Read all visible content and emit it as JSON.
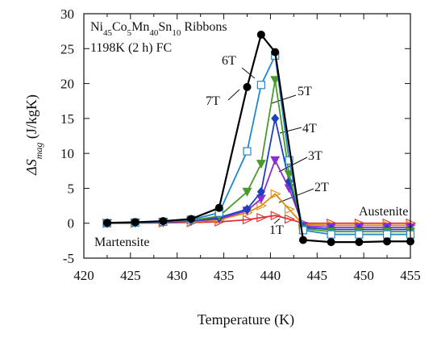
{
  "chart_data": {
    "type": "line",
    "title_line1": {
      "base": "Ni",
      "s1": "45",
      "t1": "Co",
      "s2": "5",
      "t2": "Mn",
      "s3": "40",
      "t3": "Sn",
      "s4": "10",
      "t4": " Ribbons"
    },
    "title_line2": "1198K (2 h) FC",
    "xlabel": "Temperature (K)",
    "ylabel": {
      "delta": "ΔS",
      "sub": "mag",
      "unit": " (J/kgK)"
    },
    "xlim": [
      420,
      455
    ],
    "ylim": [
      -5,
      30
    ],
    "xticks": [
      "420",
      "425",
      "430",
      "435",
      "440",
      "445",
      "450",
      "455"
    ],
    "yticks": [
      "-5",
      "0",
      "5",
      "10",
      "15",
      "20",
      "25",
      "30"
    ],
    "phase_labels": {
      "martensite": "Martensite",
      "austenite": "Austenite"
    },
    "series": [
      {
        "name": "1T",
        "color": "#e03030",
        "marker": "triangle-right-open",
        "x": [
          422.5,
          425.5,
          428.5,
          431.5,
          434.5,
          437.5,
          439.0,
          440.5,
          442.0,
          443.5,
          446.5,
          449.5,
          452.5,
          455.0
        ],
        "y": [
          0.0,
          0.0,
          0.05,
          0.1,
          0.2,
          0.5,
          0.8,
          1.1,
          0.6,
          0.0,
          0.0,
          0.0,
          0.0,
          0.0
        ]
      },
      {
        "name": "2T",
        "color": "#e08a10",
        "marker": "triangle-right-open",
        "x": [
          422.5,
          425.5,
          428.5,
          431.5,
          434.5,
          437.5,
          439.0,
          440.5,
          442.0,
          443.5,
          446.5,
          449.5,
          452.5,
          455.0
        ],
        "y": [
          0.0,
          0.0,
          0.1,
          0.2,
          0.5,
          1.5,
          2.5,
          4.2,
          2.0,
          -0.2,
          -0.3,
          -0.3,
          -0.3,
          -0.3
        ]
      },
      {
        "name": "3T",
        "color": "#8a30d0",
        "marker": "triangle-down",
        "x": [
          422.5,
          425.5,
          428.5,
          431.5,
          434.5,
          437.5,
          439.0,
          440.5,
          442.0,
          443.5,
          446.5,
          449.5,
          452.5,
          455.0
        ],
        "y": [
          0.0,
          0.05,
          0.1,
          0.3,
          0.6,
          1.8,
          3.5,
          9.0,
          5.0,
          -0.4,
          -0.6,
          -0.6,
          -0.6,
          -0.6
        ]
      },
      {
        "name": "4T",
        "color": "#1a3fc0",
        "marker": "diamond",
        "x": [
          422.5,
          425.5,
          428.5,
          431.5,
          434.5,
          437.5,
          439.0,
          440.5,
          442.0,
          443.5,
          446.5,
          449.5,
          452.5,
          455.0
        ],
        "y": [
          0.0,
          0.05,
          0.15,
          0.35,
          0.8,
          2.0,
          4.5,
          15.0,
          6.0,
          -0.6,
          -0.9,
          -0.9,
          -0.9,
          -0.9
        ]
      },
      {
        "name": "5T",
        "color": "#4a9a2a",
        "marker": "triangle-down",
        "x": [
          422.5,
          425.5,
          428.5,
          431.5,
          434.5,
          437.5,
          439.0,
          440.5,
          442.0,
          443.5,
          446.5,
          449.5,
          452.5,
          455.0
        ],
        "y": [
          0.0,
          0.05,
          0.2,
          0.4,
          1.0,
          4.5,
          8.5,
          20.5,
          7.0,
          -0.8,
          -1.2,
          -1.2,
          -1.2,
          -1.2
        ]
      },
      {
        "name": "6T",
        "color": "#2288cc",
        "marker": "square-open",
        "x": [
          422.5,
          425.5,
          428.5,
          431.5,
          434.5,
          437.5,
          439.0,
          440.5,
          442.0,
          443.5,
          446.5,
          449.5,
          452.5,
          455.0
        ],
        "y": [
          0.0,
          0.1,
          0.2,
          0.5,
          1.5,
          10.3,
          19.8,
          24.0,
          9.0,
          -1.0,
          -1.6,
          -1.6,
          -1.6,
          -1.6
        ]
      },
      {
        "name": "7T",
        "color": "#000000",
        "marker": "circle",
        "x": [
          422.5,
          425.5,
          428.5,
          431.5,
          434.5,
          437.5,
          439.0,
          440.5,
          443.5,
          446.5,
          449.5,
          452.5,
          455.0
        ],
        "y": [
          0.05,
          0.15,
          0.3,
          0.6,
          2.2,
          19.5,
          27.0,
          24.5,
          -2.4,
          -2.7,
          -2.7,
          -2.6,
          -2.6
        ]
      }
    ]
  }
}
